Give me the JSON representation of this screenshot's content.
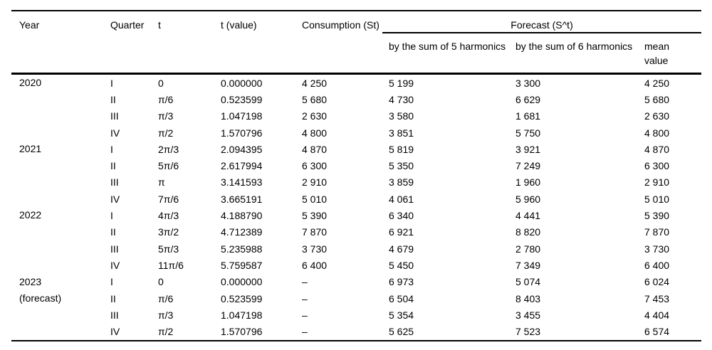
{
  "table": {
    "columns": [
      {
        "label": "Year"
      },
      {
        "label": "Quarter"
      },
      {
        "label": "t"
      },
      {
        "label": "t (value)"
      },
      {
        "label": "Consumption (St)"
      }
    ],
    "forecast_group": {
      "label": "Forecast (S^t)",
      "columns": [
        {
          "label": "by the sum of 5 harmonics"
        },
        {
          "label": "by the sum of 6 harmonics"
        },
        {
          "label": "mean value"
        }
      ]
    },
    "groups": [
      {
        "year": "2020",
        "year_note": "",
        "rows": [
          {
            "quarter": "I",
            "t": "0",
            "t_value": "0.000000",
            "consumption": "4 250",
            "sum5": "5 199",
            "sum6": "3 300",
            "mean": "4 250"
          },
          {
            "quarter": "II",
            "t": "π/6",
            "t_value": "0.523599",
            "consumption": "5 680",
            "sum5": "4 730",
            "sum6": "6 629",
            "mean": "5 680"
          },
          {
            "quarter": "III",
            "t": "π/3",
            "t_value": "1.047198",
            "consumption": "2 630",
            "sum5": "3 580",
            "sum6": "1 681",
            "mean": "2 630"
          },
          {
            "quarter": "IV",
            "t": "π/2",
            "t_value": "1.570796",
            "consumption": "4 800",
            "sum5": "3 851",
            "sum6": "5 750",
            "mean": "4 800"
          }
        ]
      },
      {
        "year": "2021",
        "year_note": "",
        "rows": [
          {
            "quarter": "I",
            "t": "2π/3",
            "t_value": "2.094395",
            "consumption": "4 870",
            "sum5": "5 819",
            "sum6": "3 921",
            "mean": "4 870"
          },
          {
            "quarter": "II",
            "t": "5π/6",
            "t_value": "2.617994",
            "consumption": "6 300",
            "sum5": "5 350",
            "sum6": "7 249",
            "mean": "6 300"
          },
          {
            "quarter": "III",
            "t": "π",
            "t_value": "3.141593",
            "consumption": "2 910",
            "sum5": "3 859",
            "sum6": "1 960",
            "mean": "2 910"
          },
          {
            "quarter": "IV",
            "t": "7π/6",
            "t_value": "3.665191",
            "consumption": "5 010",
            "sum5": "4 061",
            "sum6": "5 960",
            "mean": "5 010"
          }
        ]
      },
      {
        "year": "2022",
        "year_note": "",
        "rows": [
          {
            "quarter": "I",
            "t": "4π/3",
            "t_value": "4.188790",
            "consumption": "5 390",
            "sum5": "6 340",
            "sum6": "4 441",
            "mean": "5 390"
          },
          {
            "quarter": "II",
            "t": "3π/2",
            "t_value": "4.712389",
            "consumption": "7 870",
            "sum5": "6 921",
            "sum6": "8 820",
            "mean": "7 870"
          },
          {
            "quarter": "III",
            "t": "5π/3",
            "t_value": "5.235988",
            "consumption": "3 730",
            "sum5": "4 679",
            "sum6": "2 780",
            "mean": "3 730"
          },
          {
            "quarter": "IV",
            "t": "11π/6",
            "t_value": "5.759587",
            "consumption": "6 400",
            "sum5": "5 450",
            "sum6": "7 349",
            "mean": "6 400"
          }
        ]
      },
      {
        "year": "2023",
        "year_note": "(forecast)",
        "rows": [
          {
            "quarter": "I",
            "t": "0",
            "t_value": "0.000000",
            "consumption": "–",
            "sum5": "6 973",
            "sum6": "5 074",
            "mean": "6 024"
          },
          {
            "quarter": "II",
            "t": "π/6",
            "t_value": "0.523599",
            "consumption": "–",
            "sum5": "6 504",
            "sum6": "8 403",
            "mean": "7 453"
          },
          {
            "quarter": "III",
            "t": "π/3",
            "t_value": "1.047198",
            "consumption": "–",
            "sum5": "5 354",
            "sum6": "3 455",
            "mean": "4 404"
          },
          {
            "quarter": "IV",
            "t": "π/2",
            "t_value": "1.570796",
            "consumption": "–",
            "sum5": "5 625",
            "sum6": "7 523",
            "mean": "6 574"
          }
        ]
      }
    ]
  }
}
